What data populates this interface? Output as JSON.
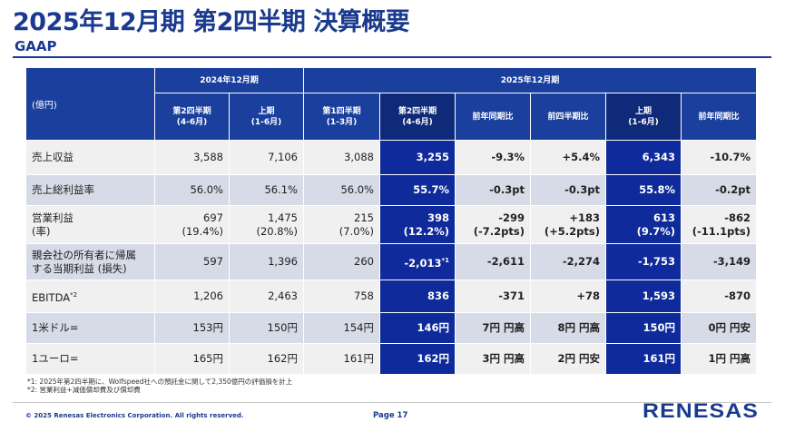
{
  "header": {
    "title": "2025年12月期 第2四半期 決算概要",
    "subtitle": "GAAP"
  },
  "table": {
    "unit": "(億円)",
    "group_2024": "2024年12月期",
    "group_2025": "2025年12月期",
    "col_headers": [
      [
        "第2四半期",
        "(4-6月)"
      ],
      [
        "上期",
        "(1-6月)"
      ],
      [
        "第1四半期",
        "(1-3月)"
      ],
      [
        "第2四半期",
        "(4-6月)"
      ],
      [
        "前年同期比",
        ""
      ],
      [
        "前四半期比",
        ""
      ],
      [
        "上期",
        "(1-6月)"
      ],
      [
        "前年同期比",
        ""
      ]
    ],
    "rows": [
      {
        "label": [
          "売上収益",
          ""
        ],
        "cells": [
          [
            "3,588",
            ""
          ],
          [
            "7,106",
            ""
          ],
          [
            "3,088",
            ""
          ],
          [
            "3,255",
            ""
          ],
          [
            "-9.3%",
            ""
          ],
          [
            "+5.4%",
            ""
          ],
          [
            "6,343",
            ""
          ],
          [
            "-10.7%",
            ""
          ]
        ]
      },
      {
        "label": [
          "売上総利益率",
          ""
        ],
        "cells": [
          [
            "56.0%",
            ""
          ],
          [
            "56.1%",
            ""
          ],
          [
            "56.0%",
            ""
          ],
          [
            "55.7%",
            ""
          ],
          [
            "-0.3pt",
            ""
          ],
          [
            "-0.3pt",
            ""
          ],
          [
            "55.8%",
            ""
          ],
          [
            "-0.2pt",
            ""
          ]
        ]
      },
      {
        "label": [
          "営業利益",
          "(率)"
        ],
        "cells": [
          [
            "697",
            "(19.4%)"
          ],
          [
            "1,475",
            "(20.8%)"
          ],
          [
            "215",
            "(7.0%)"
          ],
          [
            "398",
            "(12.2%)"
          ],
          [
            "-299",
            "(-7.2pts)"
          ],
          [
            "+183",
            "(+5.2pts)"
          ],
          [
            "613",
            "(9.7%)"
          ],
          [
            "-862",
            "(-11.1pts)"
          ]
        ]
      },
      {
        "label": [
          "親会社の所有者に帰属",
          "する当期利益 (損失)"
        ],
        "cells": [
          [
            "597",
            ""
          ],
          [
            "1,396",
            ""
          ],
          [
            "260",
            ""
          ],
          [
            "-2,013",
            ""
          ],
          [
            "-2,611",
            ""
          ],
          [
            "-2,274",
            ""
          ],
          [
            "-1,753",
            ""
          ],
          [
            "-3,149",
            ""
          ]
        ],
        "sup_q2": "*1"
      },
      {
        "label": [
          "EBITDA",
          ""
        ],
        "label_sup": "*2",
        "cells": [
          [
            "1,206",
            ""
          ],
          [
            "2,463",
            ""
          ],
          [
            "758",
            ""
          ],
          [
            "836",
            ""
          ],
          [
            "-371",
            ""
          ],
          [
            "+78",
            ""
          ],
          [
            "1,593",
            ""
          ],
          [
            "-870",
            ""
          ]
        ]
      },
      {
        "label": [
          "1米ドル=",
          ""
        ],
        "cells": [
          [
            "153円",
            ""
          ],
          [
            "150円",
            ""
          ],
          [
            "154円",
            ""
          ],
          [
            "146円",
            ""
          ],
          [
            "7円 円高",
            ""
          ],
          [
            "8円 円高",
            ""
          ],
          [
            "150円",
            ""
          ],
          [
            "0円 円安",
            ""
          ]
        ]
      },
      {
        "label": [
          "1ユーロ=",
          ""
        ],
        "cells": [
          [
            "165円",
            ""
          ],
          [
            "162円",
            ""
          ],
          [
            "161円",
            ""
          ],
          [
            "162円",
            ""
          ],
          [
            "3円 円高",
            ""
          ],
          [
            "2円 円安",
            ""
          ],
          [
            "161円",
            ""
          ],
          [
            "1円 円高",
            ""
          ]
        ]
      }
    ]
  },
  "notes": [
    "*1: 2025年第2四半期に、Wolfspeed社への預託金に関して2,350億円の評価損を計上",
    "*2: 営業利益+減価償却費及び償却費"
  ],
  "footer": {
    "copyright": "© 2025 Renesas Electronics Corporation. All rights reserved.",
    "page": "Page 17",
    "logo_text": "RENESAS"
  },
  "colors": {
    "brand": "#1a3a8f",
    "header_bg": "#1a3f9c",
    "highlight_bg": "#0f2a9a",
    "row_light": "#f0f0f0",
    "row_dark": "#d6dbe7"
  }
}
